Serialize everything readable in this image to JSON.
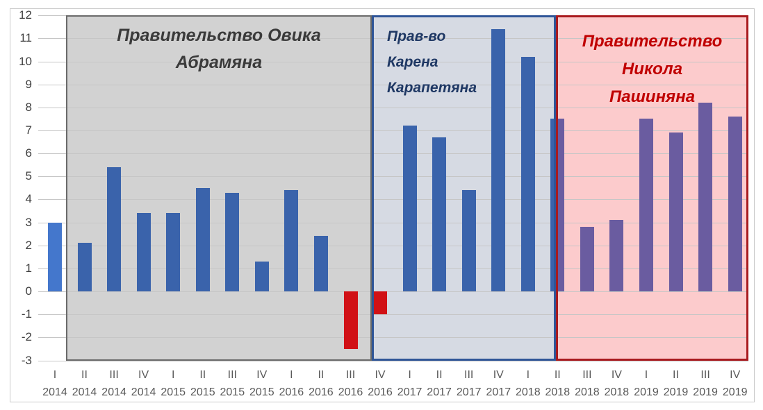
{
  "chart_data": {
    "type": "bar",
    "ylim": [
      -3,
      12
    ],
    "yticks": [
      12,
      11,
      10,
      9,
      8,
      7,
      6,
      5,
      4,
      3,
      2,
      1,
      0,
      -1,
      -2,
      -3
    ],
    "grid": true,
    "legend": "none",
    "categories": [
      {
        "quarter": "I",
        "year": "2014"
      },
      {
        "quarter": "II",
        "year": "2014"
      },
      {
        "quarter": "III",
        "year": "2014"
      },
      {
        "quarter": "IV",
        "year": "2014"
      },
      {
        "quarter": "I",
        "year": "2015"
      },
      {
        "quarter": "II",
        "year": "2015"
      },
      {
        "quarter": "III",
        "year": "2015"
      },
      {
        "quarter": "IV",
        "year": "2015"
      },
      {
        "quarter": "I",
        "year": "2016"
      },
      {
        "quarter": "II",
        "year": "2016"
      },
      {
        "quarter": "III",
        "year": "2016"
      },
      {
        "quarter": "IV",
        "year": "2016"
      },
      {
        "quarter": "I",
        "year": "2017"
      },
      {
        "quarter": "II",
        "year": "2017"
      },
      {
        "quarter": "III",
        "year": "2017"
      },
      {
        "quarter": "IV",
        "year": "2017"
      },
      {
        "quarter": "I",
        "year": "2018"
      },
      {
        "quarter": "II",
        "year": "2018"
      },
      {
        "quarter": "III",
        "year": "2018"
      },
      {
        "quarter": "IV",
        "year": "2018"
      },
      {
        "quarter": "I",
        "year": "2019"
      },
      {
        "quarter": "II",
        "year": "2019"
      },
      {
        "quarter": "III",
        "year": "2019"
      },
      {
        "quarter": "IV",
        "year": "2019"
      }
    ],
    "values": [
      3.0,
      2.1,
      5.4,
      3.4,
      3.4,
      4.5,
      4.3,
      1.3,
      4.4,
      2.4,
      -2.5,
      -1.0,
      7.2,
      6.7,
      4.4,
      11.4,
      10.2,
      7.5,
      2.8,
      3.1,
      7.5,
      6.9,
      8.2,
      7.6
    ],
    "bar_colors": [
      "light_blue",
      "blue",
      "blue",
      "blue",
      "blue",
      "blue",
      "blue",
      "blue",
      "blue",
      "blue",
      "red",
      "red",
      "blue",
      "blue",
      "blue",
      "blue",
      "blue",
      "split",
      "purple",
      "purple",
      "purple",
      "purple",
      "purple",
      "purple"
    ],
    "colors": {
      "light_blue": "#4477CC",
      "blue": "#3A63AB",
      "red": "#D11116",
      "purple": "#6A5CA0",
      "gridline": "#C6C6C6",
      "y_axis_text": "#404040",
      "x_axis_text": "#595959",
      "outer_border": "#C9C9C9"
    },
    "regions": [
      {
        "id": "abrahamyan",
        "label_lines": [
          "Правительство Овика",
          "Абрамяна"
        ],
        "start_category": "II 2014",
        "end_category": "III 2016",
        "bg": "#D2D2D2",
        "border": "#6A6A6A",
        "border_width": 2,
        "text_color": "#3B3B3B"
      },
      {
        "id": "karapetyan",
        "label_lines": [
          "Прав-во",
          "Карена",
          "Карапетяна"
        ],
        "start_category": "IV 2016",
        "end_category": "II 2018",
        "bg": "#D6DAE3",
        "border": "#2F5597",
        "border_width": 3,
        "text_color": "#1F3864"
      },
      {
        "id": "pashinyan",
        "label_lines": [
          "Правительство",
          "Никола",
          "Пашиняна"
        ],
        "start_category": "II 2018",
        "end_category": "IV 2019",
        "bg": "#FCCBCC",
        "border": "#A81A1E",
        "border_width": 3,
        "text_color": "#C00000"
      }
    ]
  }
}
